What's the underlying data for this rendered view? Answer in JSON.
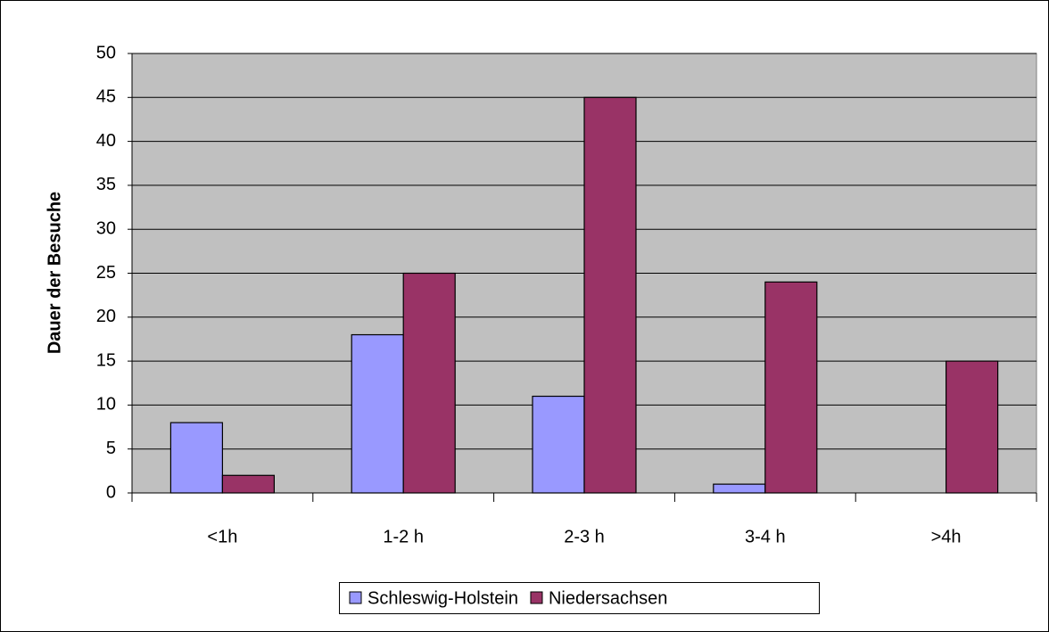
{
  "chart_data": {
    "type": "bar",
    "y_label": "Dauer der Besuche",
    "categories": [
      "<1h",
      "1-2 h",
      "2-3 h",
      "3-4 h",
      ">4h"
    ],
    "series": [
      {
        "name": "Schleswig-Holstein",
        "color": "#9999ff",
        "values": [
          8,
          18,
          11,
          1,
          0
        ]
      },
      {
        "name": "Niedersachsen",
        "color": "#993366",
        "values": [
          2,
          25,
          45,
          24,
          15
        ]
      }
    ],
    "ylim": [
      0,
      50
    ],
    "yticks": [
      0,
      5,
      10,
      15,
      20,
      25,
      30,
      35,
      40,
      45,
      50
    ],
    "grid": true,
    "legend": "bottom",
    "plot_background": "#c0c0c0"
  }
}
